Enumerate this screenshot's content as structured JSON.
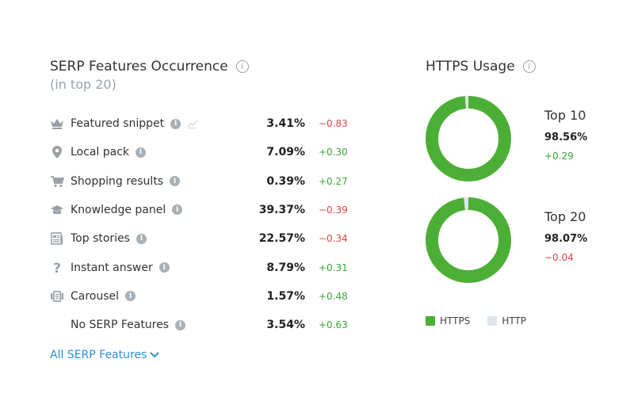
{
  "serp": {
    "title": "SERP Features Occurrence",
    "subtitle": "(in top 20)",
    "info_glyph": "i",
    "rows": [
      {
        "icon": "crown-icon",
        "label": "Featured snippet",
        "value": "3.41%",
        "delta": "−0.83",
        "trend": "negative",
        "has_chart_icon": true
      },
      {
        "icon": "map-pin-icon",
        "label": "Local pack",
        "value": "7.09%",
        "delta": "+0.30",
        "trend": "positive"
      },
      {
        "icon": "shopping-cart-icon",
        "label": "Shopping results",
        "value": "0.39%",
        "delta": "+0.27",
        "trend": "positive"
      },
      {
        "icon": "graduation-cap-icon",
        "label": "Knowledge panel",
        "value": "39.37%",
        "delta": "−0.39",
        "trend": "negative"
      },
      {
        "icon": "newspaper-icon",
        "label": "Top stories",
        "value": "22.57%",
        "delta": "−0.34",
        "trend": "negative"
      },
      {
        "icon": "question-mark-icon",
        "label": "Instant answer",
        "value": "8.79%",
        "delta": "+0.31",
        "trend": "positive"
      },
      {
        "icon": "carousel-icon",
        "label": "Carousel",
        "value": "1.57%",
        "delta": "+0.48",
        "trend": "positive"
      },
      {
        "icon": "none",
        "label": "No SERP Features",
        "value": "3.54%",
        "delta": "+0.63",
        "trend": "positive"
      }
    ],
    "all_link": "All SERP Features"
  },
  "https": {
    "title": "HTTPS Usage",
    "blocks": [
      {
        "label": "Top 10",
        "value": "98.56%",
        "delta": "+0.29",
        "trend": "positive",
        "https_share": 0.9856
      },
      {
        "label": "Top 20",
        "value": "98.07%",
        "delta": "−0.04",
        "trend": "negative",
        "https_share": 0.9807
      }
    ],
    "legend": [
      {
        "label": "HTTPS",
        "color": "#4caf35"
      },
      {
        "label": "HTTP",
        "color": "#e1e5e9"
      }
    ]
  },
  "colors": {
    "positive": "#3aa53a",
    "negative": "#e04545",
    "link": "#2a8ed8",
    "https": "#4caf35",
    "http": "#e1e5e9",
    "icon_grey": "#9aa0a6"
  }
}
